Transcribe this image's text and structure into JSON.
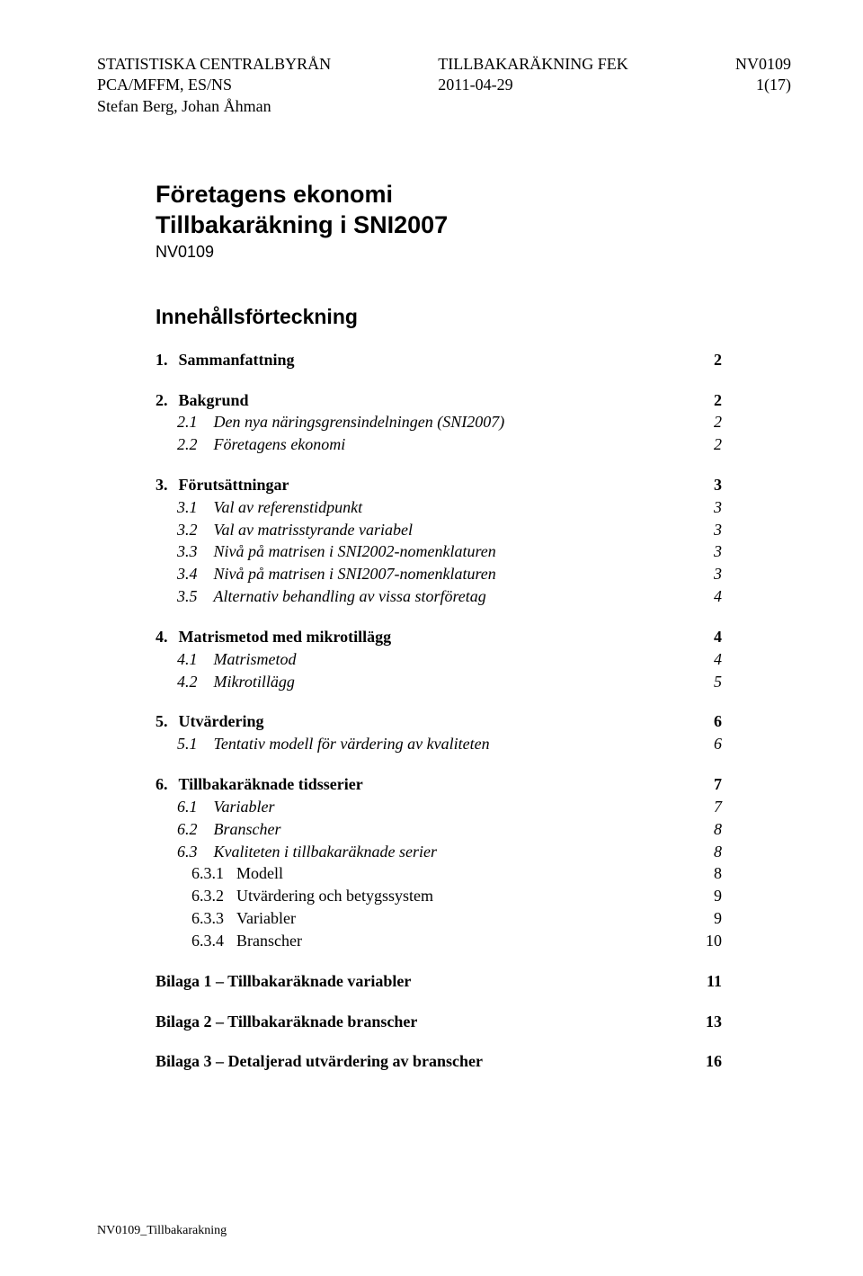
{
  "header": {
    "org": "STATISTISKA CENTRALBYRÅN",
    "dept": "PCA/MFFM, ES/NS",
    "authors": "Stefan Berg, Johan Åhman",
    "center1": "TILLBAKARÄKNING FEK",
    "center2": "2011-04-29",
    "doc_id": "NV0109",
    "page_of": "1(17)"
  },
  "title": {
    "line1": "Företagens ekonomi",
    "line2": "Tillbakaräkning i SNI2007",
    "code": "NV0109"
  },
  "toc_heading": "Innehållsförteckning",
  "toc": [
    {
      "group": [
        {
          "num": "1.",
          "label": "Sammanfattning",
          "page": "2",
          "level": 1,
          "bold": true
        }
      ]
    },
    {
      "group": [
        {
          "num": "2.",
          "label": "Bakgrund",
          "page": "2",
          "level": 1,
          "bold": true
        },
        {
          "num": "2.1",
          "label": "Den nya näringsgrensindelningen (SNI2007)",
          "page": "2",
          "level": 2,
          "italic": true
        },
        {
          "num": "2.2",
          "label": "Företagens ekonomi",
          "page": "2",
          "level": 2,
          "italic": true
        }
      ]
    },
    {
      "group": [
        {
          "num": "3.",
          "label": "Förutsättningar",
          "page": "3",
          "level": 1,
          "bold": true
        },
        {
          "num": "3.1",
          "label": "Val av referenstidpunkt",
          "page": "3",
          "level": 2,
          "italic": true
        },
        {
          "num": "3.2",
          "label": "Val av matrisstyrande variabel",
          "page": "3",
          "level": 2,
          "italic": true
        },
        {
          "num": "3.3",
          "label": "Nivå på matrisen i SNI2002-nomenklaturen",
          "page": "3",
          "level": 2,
          "italic": true
        },
        {
          "num": "3.4",
          "label": "Nivå på matrisen i SNI2007-nomenklaturen",
          "page": "3",
          "level": 2,
          "italic": true
        },
        {
          "num": "3.5",
          "label": "Alternativ behandling av vissa storföretag",
          "page": "4",
          "level": 2,
          "italic": true
        }
      ]
    },
    {
      "group": [
        {
          "num": "4.",
          "label": "Matrismetod med mikrotillägg",
          "page": "4",
          "level": 1,
          "bold": true
        },
        {
          "num": "4.1",
          "label": "Matrismetod",
          "page": "4",
          "level": 2,
          "italic": true
        },
        {
          "num": "4.2",
          "label": "Mikrotillägg",
          "page": "5",
          "level": 2,
          "italic": true
        }
      ]
    },
    {
      "group": [
        {
          "num": "5.",
          "label": "Utvärdering",
          "page": "6",
          "level": 1,
          "bold": true
        },
        {
          "num": "5.1",
          "label": "Tentativ modell för värdering av kvaliteten",
          "page": "6",
          "level": 2,
          "italic": true
        }
      ]
    },
    {
      "group": [
        {
          "num": "6.",
          "label": "Tillbakaräknade tidsserier",
          "page": "7",
          "level": 1,
          "bold": true
        },
        {
          "num": "6.1",
          "label": "Variabler",
          "page": "7",
          "level": 2,
          "italic": true
        },
        {
          "num": "6.2",
          "label": "Branscher",
          "page": "8",
          "level": 2,
          "italic": true
        },
        {
          "num": "6.3",
          "label": "Kvaliteten i tillbakaräknade serier",
          "page": "8",
          "level": 2,
          "italic": true
        },
        {
          "num": "6.3.1",
          "label": "Modell",
          "page": "8",
          "level": 3
        },
        {
          "num": "6.3.2",
          "label": "Utvärdering och betygssystem",
          "page": "9",
          "level": 3
        },
        {
          "num": "6.3.3",
          "label": "Variabler",
          "page": "9",
          "level": 3
        },
        {
          "num": "6.3.4",
          "label": "Branscher",
          "page": "10",
          "level": 3
        }
      ]
    },
    {
      "group": [
        {
          "num": "",
          "label": "Bilaga 1 – Tillbakaräknade variabler",
          "page": "11",
          "level": 1,
          "bold": true
        }
      ]
    },
    {
      "group": [
        {
          "num": "",
          "label": "Bilaga 2 – Tillbakaräknade branscher",
          "page": "13",
          "level": 1,
          "bold": true
        }
      ]
    },
    {
      "group": [
        {
          "num": "",
          "label": "Bilaga 3 – Detaljerad utvärdering av branscher",
          "page": "16",
          "level": 1,
          "bold": true
        }
      ]
    }
  ],
  "footer": "NV0109_Tillbakarakning"
}
